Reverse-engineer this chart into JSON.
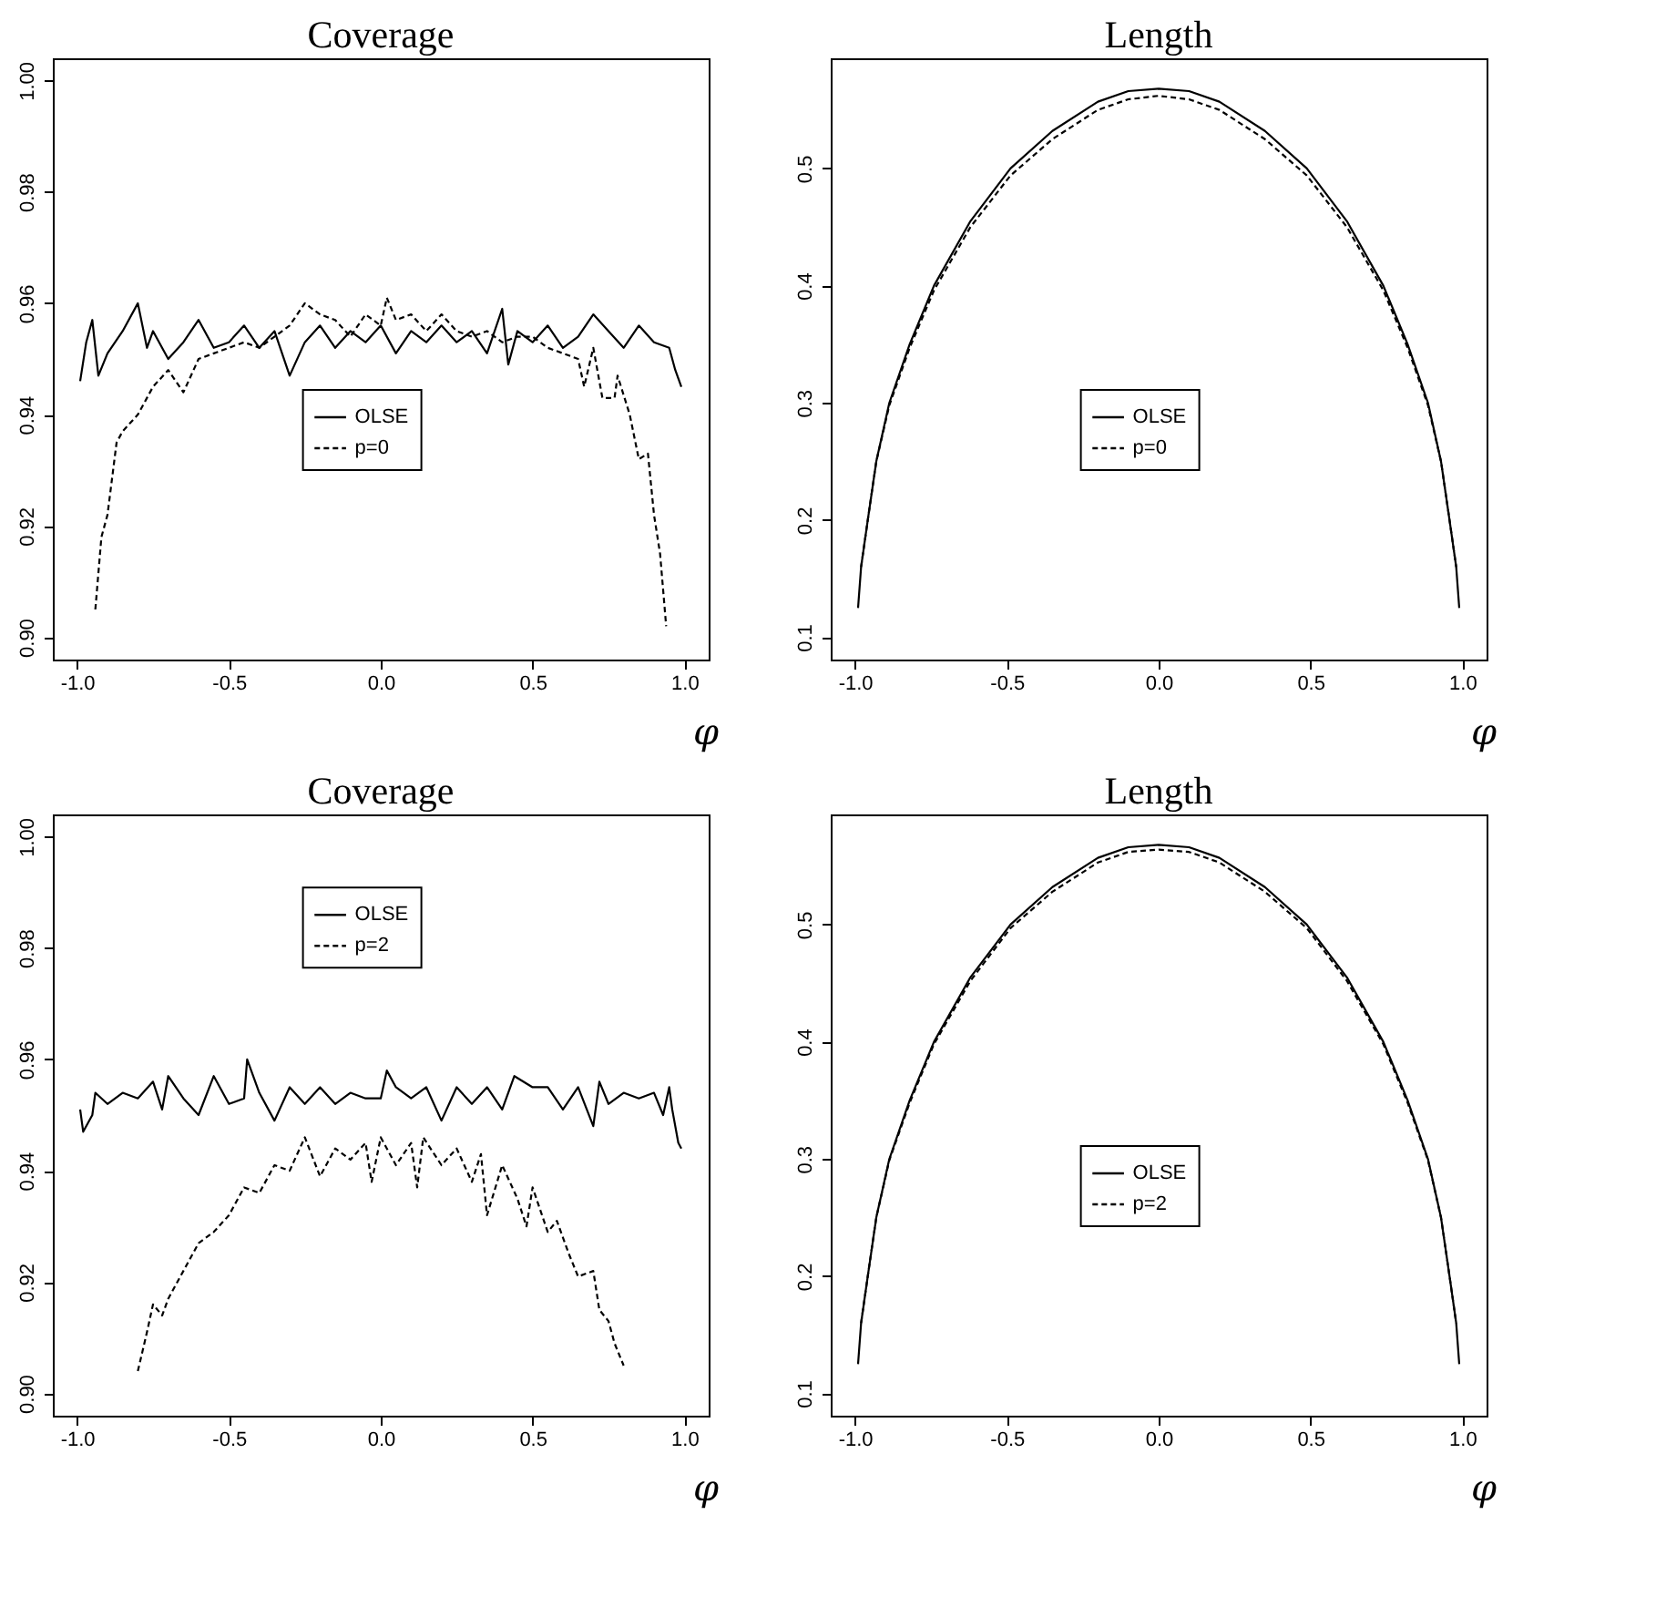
{
  "chart_data": [
    {
      "type": "line",
      "title": "Coverage",
      "xlabel": "φ",
      "xlim": [
        -1.08,
        1.08
      ],
      "xticks": [
        {
          "value": -1,
          "label": "-1.0"
        },
        {
          "value": -0.5,
          "label": "-0.5"
        },
        {
          "value": 0,
          "label": "0.0"
        },
        {
          "value": 0.5,
          "label": "0.5"
        },
        {
          "value": 1,
          "label": "1.0"
        }
      ],
      "ylim": [
        0.896,
        1.004
      ],
      "yticks": [
        {
          "value": 0.9,
          "label": "0.90"
        },
        {
          "value": 0.92,
          "label": "0.92"
        },
        {
          "value": 0.94,
          "label": "0.94"
        },
        {
          "value": 0.96,
          "label": "0.96"
        },
        {
          "value": 0.98,
          "label": "0.98"
        },
        {
          "value": 1,
          "label": "1.00"
        }
      ],
      "grid": false,
      "legend": "center",
      "series": [
        {
          "name": "OLSE",
          "color": "#000000",
          "line_style": "solid",
          "x": [
            -0.99,
            -0.97,
            -0.95,
            -0.93,
            -0.9,
            -0.85,
            -0.8,
            -0.77,
            -0.75,
            -0.7,
            -0.65,
            -0.6,
            -0.55,
            -0.5,
            -0.45,
            -0.4,
            -0.35,
            -0.3,
            -0.25,
            -0.2,
            -0.15,
            -0.1,
            -0.05,
            0,
            0.05,
            0.1,
            0.15,
            0.2,
            0.25,
            0.3,
            0.35,
            0.4,
            0.42,
            0.45,
            0.5,
            0.55,
            0.6,
            0.65,
            0.7,
            0.75,
            0.8,
            0.85,
            0.9,
            0.95,
            0.97,
            0.99
          ],
          "values": [
            0.946,
            0.953,
            0.957,
            0.947,
            0.951,
            0.955,
            0.96,
            0.952,
            0.955,
            0.95,
            0.953,
            0.957,
            0.952,
            0.953,
            0.956,
            0.952,
            0.955,
            0.947,
            0.953,
            0.956,
            0.952,
            0.955,
            0.953,
            0.956,
            0.951,
            0.955,
            0.953,
            0.956,
            0.953,
            0.955,
            0.951,
            0.959,
            0.949,
            0.955,
            0.953,
            0.956,
            0.952,
            0.954,
            0.958,
            0.955,
            0.952,
            0.956,
            0.953,
            0.952,
            0.948,
            0.945
          ]
        },
        {
          "name": "p=0",
          "color": "#000000",
          "line_style": "dashed",
          "x": [
            -0.94,
            -0.92,
            -0.9,
            -0.87,
            -0.85,
            -0.8,
            -0.75,
            -0.7,
            -0.65,
            -0.6,
            -0.55,
            -0.5,
            -0.45,
            -0.4,
            -0.35,
            -0.3,
            -0.25,
            -0.2,
            -0.15,
            -0.1,
            -0.05,
            0,
            0.02,
            0.05,
            0.1,
            0.15,
            0.2,
            0.25,
            0.3,
            0.35,
            0.4,
            0.45,
            0.5,
            0.55,
            0.6,
            0.65,
            0.67,
            0.7,
            0.73,
            0.77,
            0.78,
            0.82,
            0.85,
            0.88,
            0.9,
            0.92,
            0.94
          ],
          "values": [
            0.905,
            0.918,
            0.922,
            0.935,
            0.937,
            0.94,
            0.945,
            0.948,
            0.944,
            0.95,
            0.951,
            0.952,
            0.953,
            0.952,
            0.954,
            0.956,
            0.96,
            0.958,
            0.957,
            0.954,
            0.958,
            0.956,
            0.961,
            0.957,
            0.958,
            0.955,
            0.958,
            0.955,
            0.954,
            0.955,
            0.953,
            0.954,
            0.954,
            0.952,
            0.951,
            0.95,
            0.945,
            0.952,
            0.943,
            0.943,
            0.947,
            0.94,
            0.932,
            0.933,
            0.922,
            0.915,
            0.902
          ]
        }
      ]
    },
    {
      "type": "line",
      "title": "Length",
      "xlabel": "φ",
      "xlim": [
        -1.08,
        1.08
      ],
      "xticks": [
        {
          "value": -1,
          "label": "-1.0"
        },
        {
          "value": -0.5,
          "label": "-0.5"
        },
        {
          "value": 0,
          "label": "0.0"
        },
        {
          "value": 0.5,
          "label": "0.5"
        },
        {
          "value": 1,
          "label": "1.0"
        }
      ],
      "ylim": [
        0.081,
        0.594
      ],
      "yticks": [
        0.1,
        0.2,
        0.3,
        0.4,
        0.5
      ],
      "grid": false,
      "legend": "center",
      "series": [
        {
          "name": "OLSE",
          "color": "#000000",
          "line_style": "solid",
          "x": [
            -0.99,
            -0.98,
            -0.958,
            -0.93,
            -0.887,
            -0.82,
            -0.74,
            -0.62,
            -0.488,
            -0.35,
            -0.2,
            -0.1,
            0,
            0.1,
            0.2,
            0.35,
            0.488,
            0.62,
            0.74,
            0.82,
            0.887,
            0.93,
            0.958,
            0.98,
            0.99
          ],
          "values": [
            0.125,
            0.16,
            0.2,
            0.25,
            0.3,
            0.35,
            0.4,
            0.455,
            0.5,
            0.532,
            0.557,
            0.566,
            0.568,
            0.566,
            0.557,
            0.532,
            0.5,
            0.455,
            0.4,
            0.35,
            0.3,
            0.25,
            0.2,
            0.16,
            0.125
          ]
        },
        {
          "name": "p=0",
          "color": "#000000",
          "line_style": "dashed",
          "x": [
            -0.98,
            -0.958,
            -0.93,
            -0.887,
            -0.82,
            -0.74,
            -0.62,
            -0.488,
            -0.35,
            -0.2,
            -0.1,
            0,
            0.1,
            0.2,
            0.35,
            0.488,
            0.62,
            0.74,
            0.82,
            0.887,
            0.93,
            0.958,
            0.98
          ],
          "values": [
            0.16,
            0.2,
            0.25,
            0.298,
            0.347,
            0.396,
            0.45,
            0.494,
            0.525,
            0.55,
            0.559,
            0.562,
            0.559,
            0.55,
            0.525,
            0.494,
            0.45,
            0.396,
            0.347,
            0.298,
            0.25,
            0.2,
            0.16
          ]
        }
      ]
    },
    {
      "type": "line",
      "title": "Coverage",
      "xlabel": "φ",
      "xlim": [
        -1.08,
        1.08
      ],
      "xticks": [
        {
          "value": -1,
          "label": "-1.0"
        },
        {
          "value": -0.5,
          "label": "-0.5"
        },
        {
          "value": 0,
          "label": "0.0"
        },
        {
          "value": 0.5,
          "label": "0.5"
        },
        {
          "value": 1,
          "label": "1.0"
        }
      ],
      "ylim": [
        0.896,
        1.004
      ],
      "yticks": [
        {
          "value": 0.9,
          "label": "0.90"
        },
        {
          "value": 0.92,
          "label": "0.92"
        },
        {
          "value": 0.94,
          "label": "0.94"
        },
        {
          "value": 0.96,
          "label": "0.96"
        },
        {
          "value": 0.98,
          "label": "0.98"
        },
        {
          "value": 1,
          "label": "1.00"
        }
      ],
      "grid": false,
      "legend": "top",
      "series": [
        {
          "name": "OLSE",
          "color": "#000000",
          "line_style": "solid",
          "x": [
            -0.99,
            -0.98,
            -0.95,
            -0.94,
            -0.9,
            -0.85,
            -0.8,
            -0.75,
            -0.72,
            -0.7,
            -0.65,
            -0.6,
            -0.55,
            -0.5,
            -0.45,
            -0.44,
            -0.4,
            -0.35,
            -0.3,
            -0.25,
            -0.2,
            -0.15,
            -0.1,
            -0.05,
            0,
            0.02,
            0.05,
            0.1,
            0.15,
            0.2,
            0.25,
            0.3,
            0.35,
            0.4,
            0.44,
            0.5,
            0.55,
            0.6,
            0.65,
            0.7,
            0.72,
            0.75,
            0.8,
            0.85,
            0.9,
            0.93,
            0.95,
            0.96,
            0.98,
            0.99
          ],
          "values": [
            0.951,
            0.947,
            0.95,
            0.954,
            0.952,
            0.954,
            0.953,
            0.956,
            0.951,
            0.957,
            0.953,
            0.95,
            0.957,
            0.952,
            0.953,
            0.96,
            0.954,
            0.949,
            0.955,
            0.952,
            0.955,
            0.952,
            0.954,
            0.953,
            0.953,
            0.958,
            0.955,
            0.953,
            0.955,
            0.949,
            0.955,
            0.952,
            0.955,
            0.951,
            0.957,
            0.955,
            0.955,
            0.951,
            0.955,
            0.948,
            0.956,
            0.952,
            0.954,
            0.953,
            0.954,
            0.95,
            0.955,
            0.951,
            0.945,
            0.944
          ]
        },
        {
          "name": "p=2",
          "color": "#000000",
          "line_style": "dashed",
          "x": [
            -0.8,
            -0.77,
            -0.75,
            -0.72,
            -0.7,
            -0.65,
            -0.62,
            -0.6,
            -0.55,
            -0.5,
            -0.45,
            -0.4,
            -0.35,
            -0.3,
            -0.25,
            -0.2,
            -0.15,
            -0.1,
            -0.05,
            -0.03,
            0,
            0.05,
            0.1,
            0.12,
            0.14,
            0.2,
            0.25,
            0.3,
            0.33,
            0.35,
            0.4,
            0.45,
            0.48,
            0.5,
            0.55,
            0.58,
            0.62,
            0.65,
            0.7,
            0.72,
            0.75,
            0.77,
            0.8
          ],
          "values": [
            0.904,
            0.911,
            0.916,
            0.914,
            0.917,
            0.922,
            0.925,
            0.927,
            0.929,
            0.932,
            0.937,
            0.936,
            0.941,
            0.94,
            0.946,
            0.939,
            0.944,
            0.942,
            0.945,
            0.938,
            0.946,
            0.941,
            0.945,
            0.937,
            0.946,
            0.941,
            0.944,
            0.938,
            0.943,
            0.932,
            0.941,
            0.935,
            0.93,
            0.937,
            0.929,
            0.931,
            0.925,
            0.921,
            0.922,
            0.915,
            0.913,
            0.909,
            0.905
          ]
        }
      ]
    },
    {
      "type": "line",
      "title": "Length",
      "xlabel": "φ",
      "xlim": [
        -1.08,
        1.08
      ],
      "xticks": [
        {
          "value": -1,
          "label": "-1.0"
        },
        {
          "value": -0.5,
          "label": "-0.5"
        },
        {
          "value": 0,
          "label": "0.0"
        },
        {
          "value": 0.5,
          "label": "0.5"
        },
        {
          "value": 1,
          "label": "1.0"
        }
      ],
      "ylim": [
        0.081,
        0.594
      ],
      "yticks": [
        0.1,
        0.2,
        0.3,
        0.4,
        0.5
      ],
      "grid": false,
      "legend": "center",
      "series": [
        {
          "name": "OLSE",
          "color": "#000000",
          "line_style": "solid",
          "x": [
            -0.99,
            -0.98,
            -0.958,
            -0.93,
            -0.887,
            -0.82,
            -0.74,
            -0.62,
            -0.488,
            -0.35,
            -0.2,
            -0.1,
            0,
            0.1,
            0.2,
            0.35,
            0.488,
            0.62,
            0.74,
            0.82,
            0.887,
            0.93,
            0.958,
            0.98,
            0.99
          ],
          "values": [
            0.125,
            0.16,
            0.2,
            0.25,
            0.3,
            0.35,
            0.4,
            0.455,
            0.5,
            0.532,
            0.557,
            0.566,
            0.568,
            0.566,
            0.557,
            0.532,
            0.5,
            0.455,
            0.4,
            0.35,
            0.3,
            0.25,
            0.2,
            0.16,
            0.125
          ]
        },
        {
          "name": "p=2",
          "color": "#000000",
          "line_style": "dashed",
          "x": [
            -0.98,
            -0.958,
            -0.93,
            -0.887,
            -0.82,
            -0.74,
            -0.62,
            -0.488,
            -0.35,
            -0.2,
            -0.1,
            0,
            0.1,
            0.2,
            0.35,
            0.488,
            0.62,
            0.74,
            0.82,
            0.887,
            0.93,
            0.958,
            0.98
          ],
          "values": [
            0.16,
            0.2,
            0.25,
            0.299,
            0.348,
            0.398,
            0.452,
            0.497,
            0.528,
            0.553,
            0.562,
            0.564,
            0.562,
            0.553,
            0.528,
            0.497,
            0.452,
            0.398,
            0.348,
            0.299,
            0.25,
            0.2,
            0.16
          ]
        }
      ]
    }
  ]
}
